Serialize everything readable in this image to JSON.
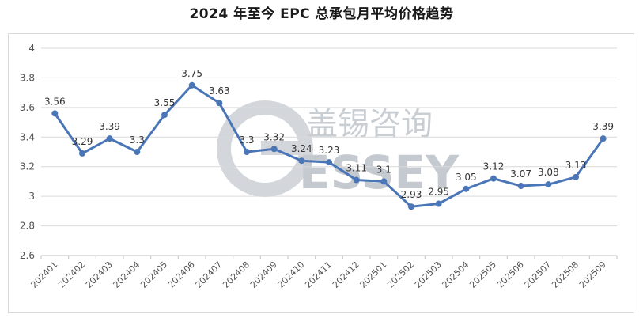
{
  "chart_data": {
    "type": "line",
    "title": "2024 年至今 EPC 总承包月平均价格趋势",
    "xlabel": "",
    "ylabel": "",
    "ylim": [
      2.6,
      4
    ],
    "yticks": [
      "2.6",
      "2.8",
      "3",
      "3.2",
      "3.4",
      "3.6",
      "3.8",
      "4"
    ],
    "grid": "horizontal",
    "legend": "none",
    "categories": [
      "202401",
      "202402",
      "202403",
      "202404",
      "202405",
      "202406",
      "202407",
      "202408",
      "202409",
      "202410",
      "202411",
      "202412",
      "202501",
      "202502",
      "202503",
      "202504",
      "202505",
      "202506",
      "202507",
      "202508",
      "202509"
    ],
    "series": [
      {
        "values": [
          3.56,
          3.29,
          3.39,
          3.3,
          3.55,
          3.75,
          3.63,
          3.3,
          3.32,
          3.24,
          3.23,
          3.11,
          3.1,
          2.93,
          2.95,
          3.05,
          3.12,
          3.07,
          3.08,
          3.13,
          3.39
        ],
        "labels": [
          "3.56",
          "3.29",
          "3.39",
          "3.3",
          "3.55",
          "3.75",
          "3.63",
          "3.3",
          "3.32",
          "3.24",
          "3.23",
          "3.11",
          "3.1",
          "2.93",
          "2.95",
          "3.05",
          "3.12",
          "3.07",
          "3.08",
          "3.13",
          "3.39"
        ],
        "color": "#4a76b8"
      }
    ]
  },
  "watermark": {
    "text_cn": "盖锡咨询",
    "text_en": "ESSEY"
  },
  "colors": {
    "line": "#4a76b8",
    "grid": "#d9d9d9",
    "watermark": "#c9ced3"
  }
}
